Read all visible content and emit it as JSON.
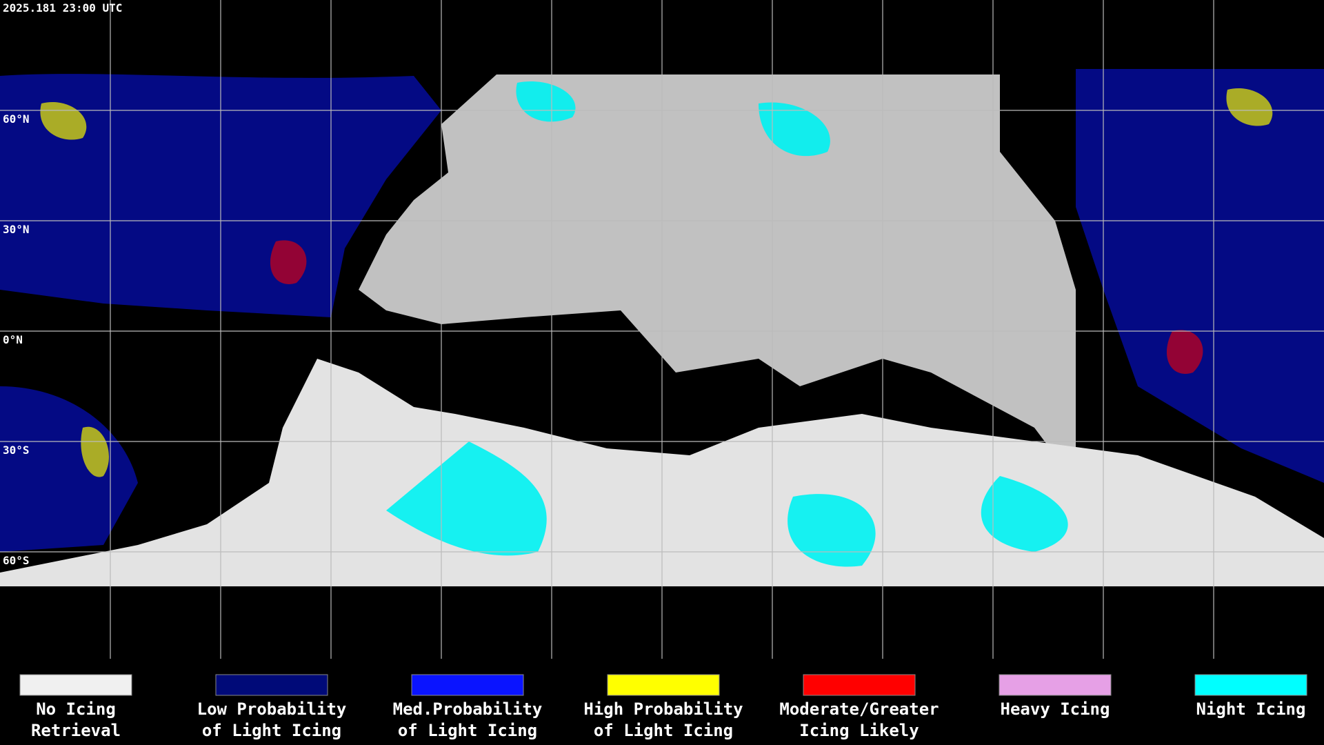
{
  "header": {
    "timestamp": "2025.181 23:00 UTC"
  },
  "grid": {
    "lat_labels": [
      "60°N",
      "30°N",
      "0°N",
      "30°S",
      "60°S"
    ]
  },
  "legend": {
    "items": [
      {
        "lines": [
          "No Icing",
          "Retrieval"
        ],
        "color": "#f0f0f0"
      },
      {
        "lines": [
          "Low Probability",
          "of Light Icing"
        ],
        "color": "#000a78"
      },
      {
        "lines": [
          "Med.Probability",
          "of Light Icing"
        ],
        "color": "#0a14ff"
      },
      {
        "lines": [
          "High Probability",
          "of Light Icing"
        ],
        "color": "#ffff00"
      },
      {
        "lines": [
          "Moderate/Greater",
          "Icing Likely"
        ],
        "color": "#ff0000"
      },
      {
        "lines": [
          "Heavy Icing"
        ],
        "color": "#e6a0e6"
      },
      {
        "lines": [
          "Night Icing"
        ],
        "color": "#00ffff"
      }
    ]
  }
}
